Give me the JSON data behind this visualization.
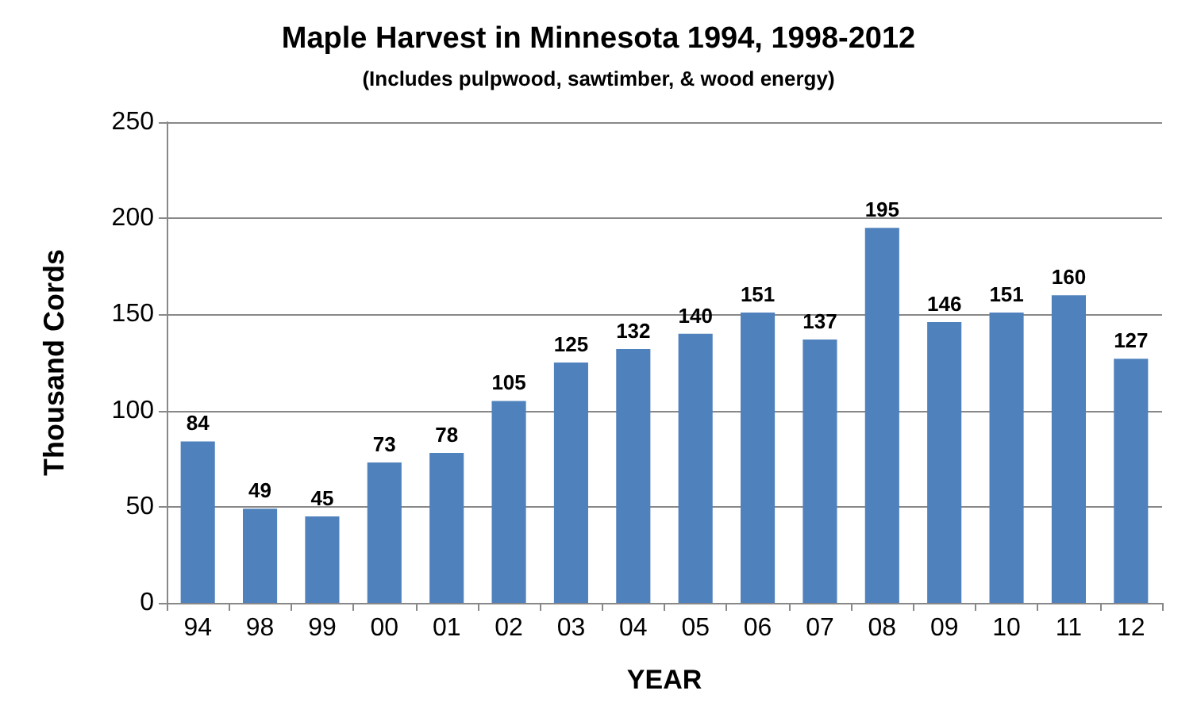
{
  "chart_data": {
    "type": "bar",
    "title": "Maple Harvest in Minnesota 1994, 1998-2012",
    "subtitle": "(Includes pulpwood, sawtimber, & wood energy)",
    "xlabel": "YEAR",
    "ylabel": "Thousand Cords",
    "categories": [
      "94",
      "98",
      "99",
      "00",
      "01",
      "02",
      "03",
      "04",
      "05",
      "06",
      "07",
      "08",
      "09",
      "10",
      "11",
      "12"
    ],
    "values": [
      84,
      49,
      45,
      73,
      78,
      105,
      125,
      132,
      140,
      151,
      137,
      195,
      146,
      151,
      160,
      127
    ],
    "color": "#4f81bd",
    "ylim": [
      0,
      250
    ],
    "yticks": [
      0,
      50,
      100,
      150,
      200,
      250
    ],
    "grid": "y",
    "data_labels": true
  }
}
